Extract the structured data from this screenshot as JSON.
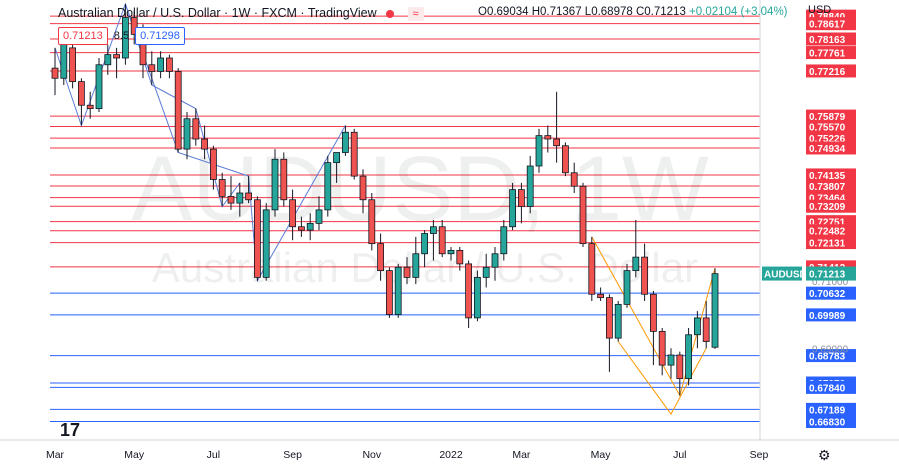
{
  "header": {
    "title": "Australian Dollar / U.S. Dollar · 1W · FXCM · TradingView",
    "ohlc": {
      "open": "O0.69034",
      "high": "H0.71367",
      "low": "L0.68978",
      "close": "C0.71213",
      "change": "+0.02104 (+3.04%)"
    },
    "currency": "USD",
    "sell_price": "0.71213",
    "spread": "8.5",
    "buy_price": "0.71298"
  },
  "colors": {
    "up": "#26a69a",
    "down": "#ef5350",
    "resistance": "#f23645",
    "support": "#2962ff",
    "channel": "#ff9800",
    "zigzag": "#5b7bd5"
  },
  "icons": [
    "tradingview-logo-icon",
    "settings-gear-icon",
    "alert-dot-icon",
    "wave-indicator-icon"
  ],
  "chart_data": {
    "type": "candlestick",
    "symbol": "AUDUSD",
    "interval": "1W",
    "watermark": "AUDUSD, 1W",
    "watermark_sub": "Australian Dollar / U.S. Dollar",
    "ylim": [
      0.664,
      0.792
    ],
    "y_ticks": [
      0.71,
      0.69
    ],
    "x_ticks": [
      {
        "index": 0,
        "label": "Mar"
      },
      {
        "index": 9,
        "label": "May"
      },
      {
        "index": 18,
        "label": "Jul"
      },
      {
        "index": 27,
        "label": "Sep"
      },
      {
        "index": 36,
        "label": "Nov"
      },
      {
        "index": 45,
        "label": "2022"
      },
      {
        "index": 53,
        "label": "Mar"
      },
      {
        "index": 62,
        "label": "May"
      },
      {
        "index": 71,
        "label": "Jul"
      },
      {
        "index": 80,
        "label": "Sep"
      }
    ],
    "last_price": {
      "label": "AUDUSD",
      "value": 0.71213
    },
    "resistance_levels": [
      0.7884,
      0.78617,
      0.78163,
      0.77761,
      0.77216,
      0.75879,
      0.7557,
      0.75226,
      0.74934,
      0.74135,
      0.73807,
      0.73464,
      0.73209,
      0.72751,
      0.72482,
      0.72131,
      0.71412
    ],
    "support_levels": [
      0.70632,
      0.69989,
      0.68783,
      0.6797,
      0.6784,
      0.67189,
      0.6683
    ],
    "candles": [
      {
        "o": 0.773,
        "h": 0.779,
        "l": 0.765,
        "c": 0.77
      },
      {
        "o": 0.77,
        "h": 0.785,
        "l": 0.768,
        "c": 0.78
      },
      {
        "o": 0.779,
        "h": 0.782,
        "l": 0.767,
        "c": 0.769
      },
      {
        "o": 0.769,
        "h": 0.77,
        "l": 0.756,
        "c": 0.762
      },
      {
        "o": 0.762,
        "h": 0.766,
        "l": 0.758,
        "c": 0.761
      },
      {
        "o": 0.761,
        "h": 0.776,
        "l": 0.76,
        "c": 0.774
      },
      {
        "o": 0.774,
        "h": 0.78,
        "l": 0.771,
        "c": 0.777
      },
      {
        "o": 0.777,
        "h": 0.779,
        "l": 0.77,
        "c": 0.776
      },
      {
        "o": 0.776,
        "h": 0.792,
        "l": 0.774,
        "c": 0.788
      },
      {
        "o": 0.788,
        "h": 0.79,
        "l": 0.78,
        "c": 0.783
      },
      {
        "o": 0.783,
        "h": 0.786,
        "l": 0.77,
        "c": 0.774
      },
      {
        "o": 0.774,
        "h": 0.778,
        "l": 0.768,
        "c": 0.772
      },
      {
        "o": 0.772,
        "h": 0.778,
        "l": 0.77,
        "c": 0.776
      },
      {
        "o": 0.776,
        "h": 0.777,
        "l": 0.77,
        "c": 0.772
      },
      {
        "o": 0.772,
        "h": 0.773,
        "l": 0.748,
        "c": 0.749
      },
      {
        "o": 0.749,
        "h": 0.76,
        "l": 0.746,
        "c": 0.758
      },
      {
        "o": 0.758,
        "h": 0.761,
        "l": 0.75,
        "c": 0.752
      },
      {
        "o": 0.752,
        "h": 0.756,
        "l": 0.746,
        "c": 0.749
      },
      {
        "o": 0.749,
        "h": 0.75,
        "l": 0.737,
        "c": 0.74
      },
      {
        "o": 0.74,
        "h": 0.742,
        "l": 0.732,
        "c": 0.735
      },
      {
        "o": 0.735,
        "h": 0.741,
        "l": 0.731,
        "c": 0.733
      },
      {
        "o": 0.733,
        "h": 0.739,
        "l": 0.729,
        "c": 0.736
      },
      {
        "o": 0.736,
        "h": 0.741,
        "l": 0.733,
        "c": 0.734
      },
      {
        "o": 0.734,
        "h": 0.735,
        "l": 0.71,
        "c": 0.711
      },
      {
        "o": 0.711,
        "h": 0.733,
        "l": 0.71,
        "c": 0.731
      },
      {
        "o": 0.731,
        "h": 0.749,
        "l": 0.729,
        "c": 0.746
      },
      {
        "o": 0.746,
        "h": 0.748,
        "l": 0.732,
        "c": 0.734
      },
      {
        "o": 0.734,
        "h": 0.737,
        "l": 0.722,
        "c": 0.726
      },
      {
        "o": 0.726,
        "h": 0.729,
        "l": 0.723,
        "c": 0.725
      },
      {
        "o": 0.725,
        "h": 0.73,
        "l": 0.722,
        "c": 0.727
      },
      {
        "o": 0.727,
        "h": 0.735,
        "l": 0.725,
        "c": 0.731
      },
      {
        "o": 0.731,
        "h": 0.747,
        "l": 0.729,
        "c": 0.745
      },
      {
        "o": 0.745,
        "h": 0.748,
        "l": 0.739,
        "c": 0.748
      },
      {
        "o": 0.748,
        "h": 0.756,
        "l": 0.747,
        "c": 0.754
      },
      {
        "o": 0.754,
        "h": 0.755,
        "l": 0.74,
        "c": 0.741
      },
      {
        "o": 0.741,
        "h": 0.743,
        "l": 0.73,
        "c": 0.734
      },
      {
        "o": 0.734,
        "h": 0.736,
        "l": 0.719,
        "c": 0.721
      },
      {
        "o": 0.721,
        "h": 0.724,
        "l": 0.71,
        "c": 0.713
      },
      {
        "o": 0.713,
        "h": 0.714,
        "l": 0.699,
        "c": 0.7
      },
      {
        "o": 0.7,
        "h": 0.715,
        "l": 0.699,
        "c": 0.714
      },
      {
        "o": 0.714,
        "h": 0.717,
        "l": 0.709,
        "c": 0.711
      },
      {
        "o": 0.711,
        "h": 0.723,
        "l": 0.709,
        "c": 0.718
      },
      {
        "o": 0.718,
        "h": 0.725,
        "l": 0.714,
        "c": 0.724
      },
      {
        "o": 0.724,
        "h": 0.728,
        "l": 0.716,
        "c": 0.726
      },
      {
        "o": 0.726,
        "h": 0.728,
        "l": 0.717,
        "c": 0.718
      },
      {
        "o": 0.718,
        "h": 0.72,
        "l": 0.716,
        "c": 0.719
      },
      {
        "o": 0.719,
        "h": 0.72,
        "l": 0.713,
        "c": 0.715
      },
      {
        "o": 0.715,
        "h": 0.716,
        "l": 0.696,
        "c": 0.699
      },
      {
        "o": 0.699,
        "h": 0.713,
        "l": 0.698,
        "c": 0.711
      },
      {
        "o": 0.711,
        "h": 0.718,
        "l": 0.708,
        "c": 0.714
      },
      {
        "o": 0.714,
        "h": 0.72,
        "l": 0.71,
        "c": 0.718
      },
      {
        "o": 0.718,
        "h": 0.728,
        "l": 0.716,
        "c": 0.726
      },
      {
        "o": 0.726,
        "h": 0.739,
        "l": 0.725,
        "c": 0.737
      },
      {
        "o": 0.737,
        "h": 0.739,
        "l": 0.727,
        "c": 0.732
      },
      {
        "o": 0.732,
        "h": 0.747,
        "l": 0.73,
        "c": 0.744
      },
      {
        "o": 0.744,
        "h": 0.755,
        "l": 0.742,
        "c": 0.753
      },
      {
        "o": 0.753,
        "h": 0.756,
        "l": 0.748,
        "c": 0.752
      },
      {
        "o": 0.752,
        "h": 0.766,
        "l": 0.745,
        "c": 0.75
      },
      {
        "o": 0.75,
        "h": 0.751,
        "l": 0.741,
        "c": 0.742
      },
      {
        "o": 0.742,
        "h": 0.745,
        "l": 0.736,
        "c": 0.738
      },
      {
        "o": 0.738,
        "h": 0.739,
        "l": 0.72,
        "c": 0.721
      },
      {
        "o": 0.721,
        "h": 0.723,
        "l": 0.704,
        "c": 0.706
      },
      {
        "o": 0.706,
        "h": 0.708,
        "l": 0.704,
        "c": 0.705
      },
      {
        "o": 0.705,
        "h": 0.706,
        "l": 0.683,
        "c": 0.693
      },
      {
        "o": 0.693,
        "h": 0.704,
        "l": 0.692,
        "c": 0.703
      },
      {
        "o": 0.703,
        "h": 0.715,
        "l": 0.702,
        "c": 0.713
      },
      {
        "o": 0.713,
        "h": 0.728,
        "l": 0.711,
        "c": 0.717
      },
      {
        "o": 0.717,
        "h": 0.721,
        "l": 0.704,
        "c": 0.706
      },
      {
        "o": 0.706,
        "h": 0.707,
        "l": 0.685,
        "c": 0.695
      },
      {
        "o": 0.695,
        "h": 0.696,
        "l": 0.682,
        "c": 0.685
      },
      {
        "o": 0.685,
        "h": 0.69,
        "l": 0.681,
        "c": 0.688
      },
      {
        "o": 0.688,
        "h": 0.689,
        "l": 0.676,
        "c": 0.681
      },
      {
        "o": 0.681,
        "h": 0.696,
        "l": 0.679,
        "c": 0.694
      },
      {
        "o": 0.694,
        "h": 0.701,
        "l": 0.69,
        "c": 0.699
      },
      {
        "o": 0.699,
        "h": 0.704,
        "l": 0.69,
        "c": 0.692
      },
      {
        "o": 0.6903,
        "h": 0.7137,
        "l": 0.6898,
        "c": 0.7121
      }
    ]
  }
}
